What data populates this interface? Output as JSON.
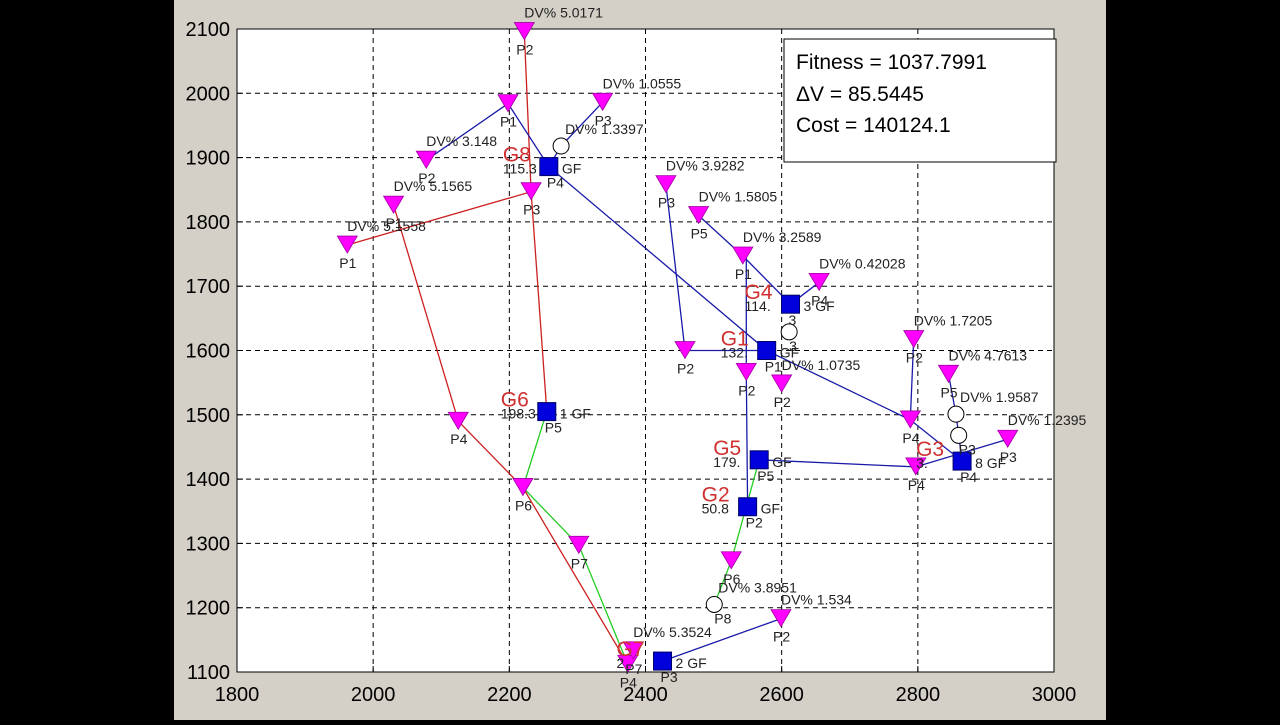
{
  "info_box": {
    "fitness": "Fitness = 1037.7991",
    "delta_v": "ΔV = 85.5445",
    "cost": "Cost = 140124.1"
  },
  "chart_data": {
    "type": "scatter",
    "title": "",
    "xlabel": "",
    "ylabel": "",
    "xlim": [
      1800,
      3000
    ],
    "ylim": [
      1100,
      2100
    ],
    "x_ticks": [
      "1800",
      "2000",
      "2200",
      "2400",
      "2600",
      "2800",
      "3000"
    ],
    "y_ticks": [
      "1100",
      "1200",
      "1300",
      "1400",
      "1500",
      "1600",
      "1700",
      "1800",
      "1900",
      "2000",
      "2100"
    ],
    "grid": true,
    "colors": {
      "red_route": "#cc2020",
      "blue_route": "#1a1aa8",
      "green_route": "#22cc22",
      "load_point": "#ff00ff",
      "generator": "#0000dd",
      "group_label": "#d03030"
    },
    "generators": [
      {
        "id": "G8",
        "x": 2258,
        "y": 1886,
        "label": "115.3",
        "tag": "GF",
        "sublabel": "P4"
      },
      {
        "id": "G6",
        "x": 2255,
        "y": 1505,
        "label": "198.3",
        "tag": "1 GF",
        "sublabel": "P5"
      },
      {
        "id": "G4",
        "x": 2613,
        "y": 1672,
        "label": "114.",
        "tag": "3 GF",
        "sublabel": "3"
      },
      {
        "id": "G1",
        "x": 2578,
        "y": 1600,
        "label": "132.",
        "tag": "GF",
        "sublabel": "P1"
      },
      {
        "id": "G5",
        "x": 2567,
        "y": 1430,
        "label": "179.",
        "tag": "GF",
        "sublabel": "P5"
      },
      {
        "id": "G2",
        "x": 2550,
        "y": 1357,
        "label": "50.8",
        "tag": "GF",
        "sublabel": "P2"
      },
      {
        "id": "G3",
        "x": 2865,
        "y": 1428,
        "label": "3.",
        "tag": "8 GF",
        "sublabel": "P4"
      },
      {
        "id": "G7",
        "x": 2425,
        "y": 1117,
        "label": "2",
        "tag": "2 GF",
        "sublabel": "P3"
      }
    ],
    "load_points": [
      {
        "name": "P2",
        "x": 2222,
        "y": 2096,
        "dv": "DV% 5.0171"
      },
      {
        "name": "P1",
        "x": 2198,
        "y": 1984,
        "dv": ""
      },
      {
        "name": "P3",
        "x": 2337,
        "y": 1986,
        "dv": "DV% 1.0555"
      },
      {
        "name": "P2",
        "x": 2078,
        "y": 1896,
        "dv": "DV% 3.148"
      },
      {
        "name": "P1",
        "x": 2030,
        "y": 1826,
        "dv": "DV% 5.1565"
      },
      {
        "name": "P1",
        "x": 1962,
        "y": 1764,
        "dv": "DV% 5.1558"
      },
      {
        "name": "P3",
        "x": 2232,
        "y": 1847,
        "dv": ""
      },
      {
        "name": "P4",
        "x": 2125,
        "y": 1490,
        "dv": ""
      },
      {
        "name": "P6",
        "x": 2220,
        "y": 1387,
        "dv": ""
      },
      {
        "name": "P7",
        "x": 2302,
        "y": 1297,
        "dv": ""
      },
      {
        "name": "P4",
        "x": 2374,
        "y": 1112,
        "dv": ""
      },
      {
        "name": "P3",
        "x": 2430,
        "y": 1858,
        "dv": "DV% 3.9282"
      },
      {
        "name": "P5",
        "x": 2478,
        "y": 1810,
        "dv": "DV% 1.5805"
      },
      {
        "name": "P2",
        "x": 2458,
        "y": 1600,
        "dv": ""
      },
      {
        "name": "P1",
        "x": 2543,
        "y": 1747,
        "dv": "DV% 3.2589"
      },
      {
        "name": "P4",
        "x": 2655,
        "y": 1706,
        "dv": "DV% 0.42028"
      },
      {
        "name": "P2",
        "x": 2548,
        "y": 1566,
        "dv": ""
      },
      {
        "name": "P2",
        "x": 2600,
        "y": 1548,
        "dv": "DV% 1.0735"
      },
      {
        "name": "P2",
        "x": 2794,
        "y": 1617,
        "dv": "DV% 1.7205"
      },
      {
        "name": "P5",
        "x": 2845,
        "y": 1563,
        "dv": "DV% 4.7613"
      },
      {
        "name": "P4",
        "x": 2789,
        "y": 1492,
        "dv": ""
      },
      {
        "name": "P3",
        "x": 2932,
        "y": 1462,
        "dv": "DV% 1.2395"
      },
      {
        "name": "P4",
        "x": 2797,
        "y": 1419,
        "dv": ""
      },
      {
        "name": "P6",
        "x": 2526,
        "y": 1273,
        "dv": ""
      },
      {
        "name": "P2",
        "x": 2599,
        "y": 1183,
        "dv": "DV% 1.534"
      },
      {
        "name": "P7",
        "x": 2382,
        "y": 1133,
        "dv": "DV% 5.3524"
      }
    ],
    "junctions": [
      {
        "name": "",
        "x": 2276,
        "y": 1918,
        "dv": "DV% 1.3397"
      },
      {
        "name": "3",
        "x": 2611,
        "y": 1629,
        "dv": ""
      },
      {
        "name": "",
        "x": 2856,
        "y": 1501,
        "dv": "DV% 1.9587"
      },
      {
        "name": "P3",
        "x": 2860,
        "y": 1468,
        "dv": ""
      },
      {
        "name": "P8",
        "x": 2501,
        "y": 1205,
        "dv": "DV% 3.8951"
      }
    ],
    "routes": [
      {
        "color": "red_route",
        "points": [
          [
            1962,
            1764
          ],
          [
            2232,
            1847
          ],
          [
            2222,
            2096
          ]
        ]
      },
      {
        "color": "red_route",
        "points": [
          [
            2030,
            1826
          ],
          [
            2125,
            1490
          ],
          [
            2220,
            1387
          ],
          [
            2374,
            1112
          ]
        ]
      },
      {
        "color": "red_route",
        "points": [
          [
            2232,
            1847
          ],
          [
            2255,
            1505
          ]
        ]
      },
      {
        "color": "blue_route",
        "points": [
          [
            2078,
            1896
          ],
          [
            2198,
            1984
          ],
          [
            2258,
            1886
          ]
        ]
      },
      {
        "color": "blue_route",
        "points": [
          [
            2337,
            1986
          ],
          [
            2276,
            1918
          ],
          [
            2258,
            1886
          ],
          [
            2578,
            1600
          ]
        ]
      },
      {
        "color": "blue_route",
        "points": [
          [
            2430,
            1858
          ],
          [
            2458,
            1600
          ],
          [
            2578,
            1600
          ],
          [
            2789,
            1492
          ],
          [
            2865,
            1428
          ]
        ]
      },
      {
        "color": "blue_route",
        "points": [
          [
            2478,
            1810
          ],
          [
            2543,
            1747
          ],
          [
            2613,
            1672
          ],
          [
            2655,
            1706
          ]
        ]
      },
      {
        "color": "blue_route",
        "points": [
          [
            2548,
            1747
          ],
          [
            2548,
            1566
          ],
          [
            2550,
            1357
          ]
        ]
      },
      {
        "color": "blue_route",
        "points": [
          [
            2567,
            1430
          ],
          [
            2797,
            1419
          ],
          [
            2932,
            1462
          ]
        ]
      },
      {
        "color": "blue_route",
        "points": [
          [
            2425,
            1117
          ],
          [
            2599,
            1183
          ]
        ]
      },
      {
        "color": "blue_route",
        "points": [
          [
            2794,
            1617
          ],
          [
            2789,
            1492
          ]
        ]
      },
      {
        "color": "blue_route",
        "points": [
          [
            2845,
            1563
          ],
          [
            2856,
            1501
          ],
          [
            2860,
            1468
          ],
          [
            2865,
            1428
          ]
        ]
      },
      {
        "color": "green_route",
        "points": [
          [
            2255,
            1505
          ],
          [
            2220,
            1387
          ],
          [
            2302,
            1297
          ],
          [
            2374,
            1112
          ]
        ]
      },
      {
        "color": "green_route",
        "points": [
          [
            2567,
            1430
          ],
          [
            2526,
            1273
          ],
          [
            2501,
            1205
          ]
        ]
      }
    ]
  }
}
